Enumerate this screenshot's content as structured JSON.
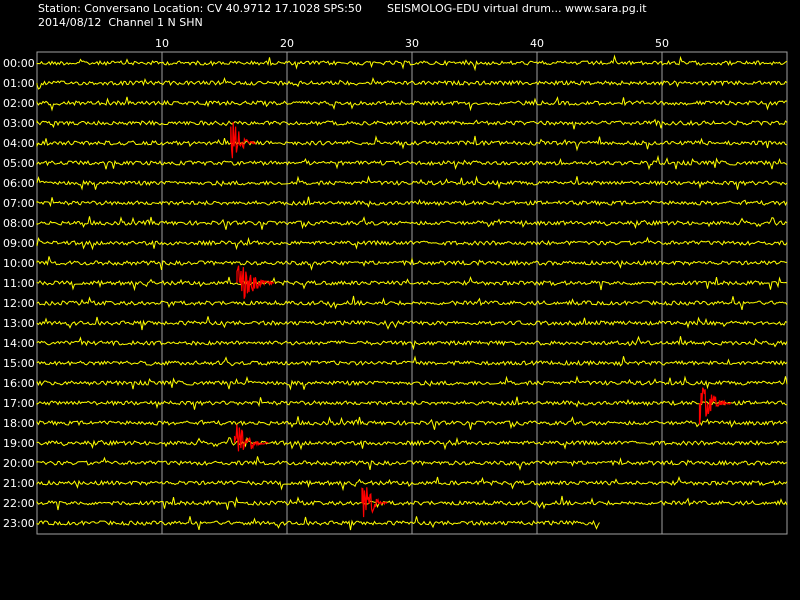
{
  "header": {
    "station_line": "Station: Conversano Location: CV 40.9712 17.1028 SPS:50",
    "date_line": "2014/08/12  Channel 1 N SHN",
    "app_line": "SEISMOLOG-EDU virtual drum... www.sara.pg.it"
  },
  "colors": {
    "background": "#000000",
    "trace": "#ffff00",
    "event": "#ff0000",
    "grid": "#a0a0a0",
    "text": "#ffffff"
  },
  "chart_data": {
    "type": "line",
    "title": "",
    "xlabel": "",
    "ylabel": "",
    "x_unit": "minutes",
    "xlim": [
      0,
      60
    ],
    "x_ticks": [
      10,
      20,
      30,
      40,
      50
    ],
    "grid": true,
    "rows": [
      "00:00",
      "01:00",
      "02:00",
      "03:00",
      "04:00",
      "05:00",
      "06:00",
      "07:00",
      "08:00",
      "09:00",
      "10:00",
      "11:00",
      "12:00",
      "13:00",
      "14:00",
      "15:00",
      "16:00",
      "17:00",
      "18:00",
      "19:00",
      "20:00",
      "21:00",
      "22:00",
      "23:00"
    ],
    "last_row_end_minute": 45,
    "events": [
      {
        "row": "04:00",
        "start_minute": 15.5,
        "end_minute": 17.5
      },
      {
        "row": "11:00",
        "start_minute": 16,
        "end_minute": 19
      },
      {
        "row": "19:00",
        "start_minute": 15.8,
        "end_minute": 18.5
      },
      {
        "row": "22:00",
        "start_minute": 26,
        "end_minute": 28
      },
      {
        "row": "17:00",
        "start_minute": 53,
        "end_minute": 55.5
      }
    ]
  }
}
